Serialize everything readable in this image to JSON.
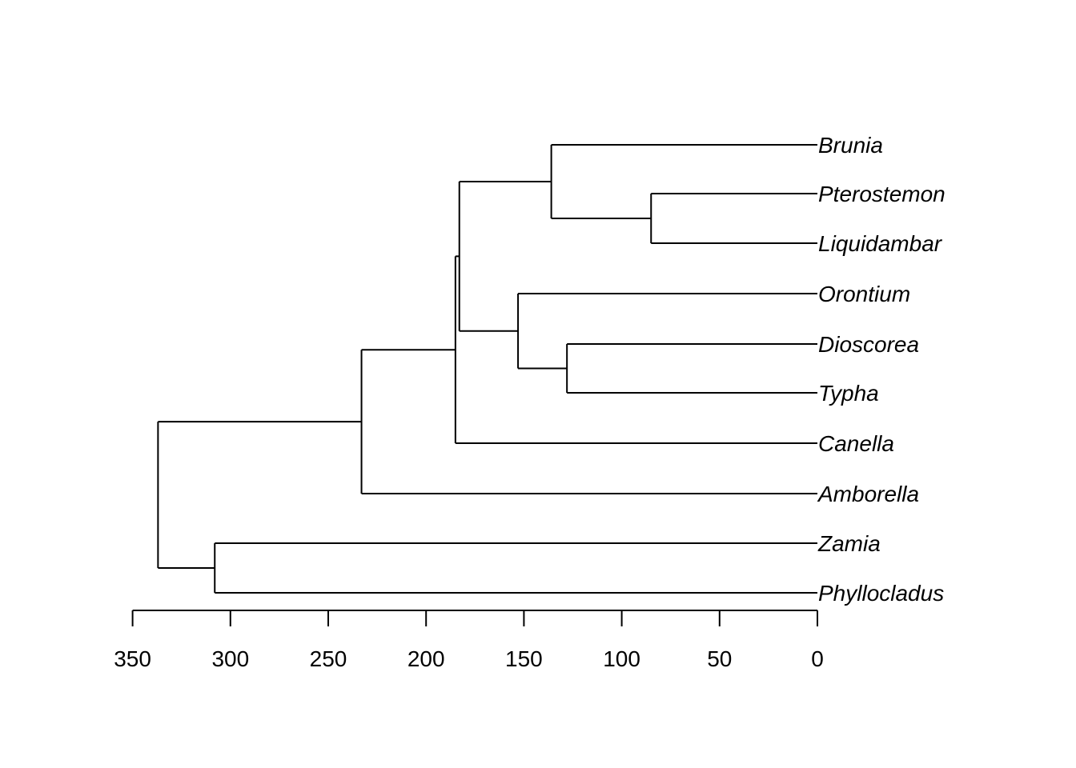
{
  "colors": {
    "background": "#ffffff",
    "line": "#000000"
  },
  "tree": {
    "type": "dendrogram",
    "orientation": "root-left, tips-right",
    "axis": {
      "direction": "reversed (time before present)",
      "ticks": [
        "350",
        "300",
        "250",
        "200",
        "150",
        "100",
        "50",
        "0"
      ],
      "tick_values": [
        350,
        300,
        250,
        200,
        150,
        100,
        50,
        0
      ]
    },
    "tips": [
      {
        "name": "Brunia"
      },
      {
        "name": "Pterostemon"
      },
      {
        "name": "Liquidambar"
      },
      {
        "name": "Orontium"
      },
      {
        "name": "Dioscorea"
      },
      {
        "name": "Typha"
      },
      {
        "name": "Canella"
      },
      {
        "name": "Amborella"
      },
      {
        "name": "Zamia"
      },
      {
        "name": "Phyllocladus"
      }
    ],
    "nodes": [
      {
        "id": "n_ptero_liqui",
        "age": 85,
        "children": [
          "Pterostemon",
          "Liquidambar"
        ]
      },
      {
        "id": "n_brunia_clade",
        "age": 136,
        "children": [
          "Brunia",
          "n_ptero_liqui"
        ]
      },
      {
        "id": "n_dios_typha",
        "age": 128,
        "children": [
          "Dioscorea",
          "Typha"
        ]
      },
      {
        "id": "n_monocots",
        "age": 153,
        "children": [
          "Orontium",
          "n_dios_typha"
        ]
      },
      {
        "id": "n_eudicot_mono",
        "age": 183,
        "children": [
          "n_brunia_clade",
          "n_monocots"
        ]
      },
      {
        "id": "n_mesangio",
        "age": 185,
        "children": [
          "n_eudicot_mono",
          "Canella"
        ]
      },
      {
        "id": "n_angio",
        "age": 233,
        "children": [
          "n_mesangio",
          "Amborella"
        ]
      },
      {
        "id": "n_gymno",
        "age": 308,
        "children": [
          "Zamia",
          "Phyllocladus"
        ]
      },
      {
        "id": "n_root",
        "age": 337,
        "children": [
          "n_angio",
          "n_gymno"
        ]
      }
    ]
  }
}
